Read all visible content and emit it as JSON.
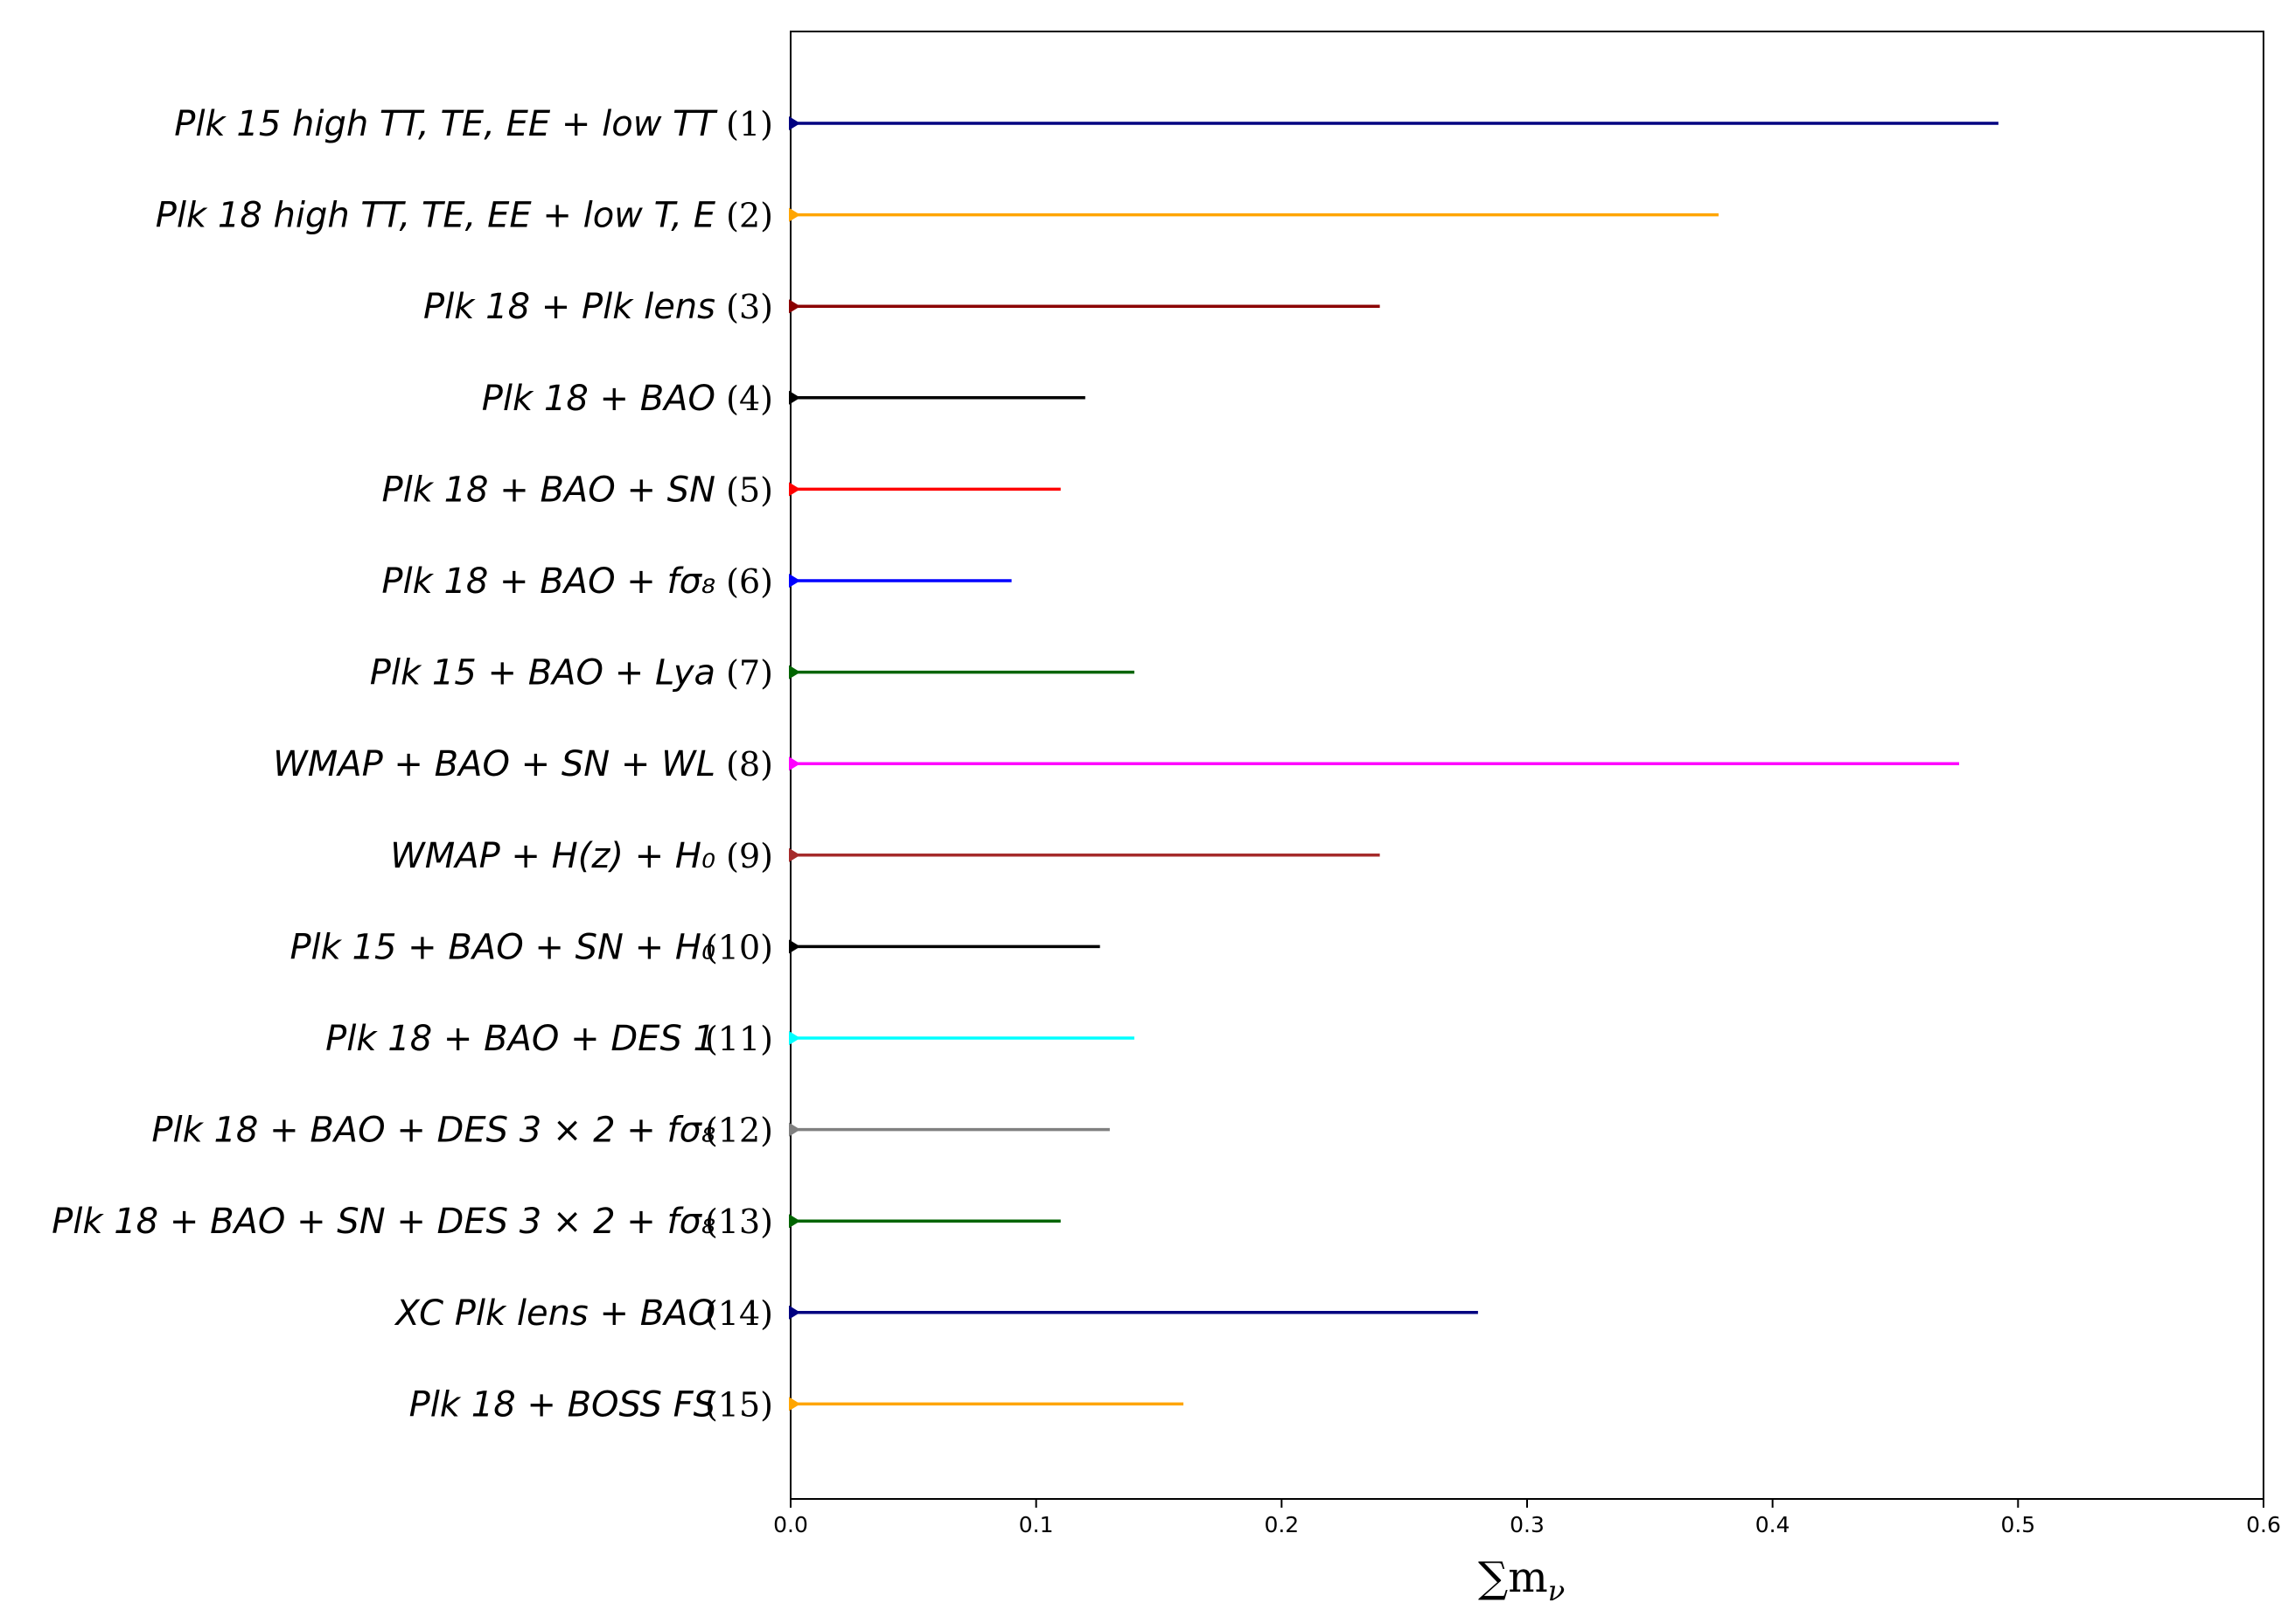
{
  "chart_data": {
    "type": "horizontal-bar",
    "title": "",
    "xlabel": "∑m",
    "xlabel_subscript": "ν",
    "ylabel": "",
    "xlim": [
      0.0,
      0.6
    ],
    "xticks": [
      "0.0",
      "0.1",
      "0.2",
      "0.3",
      "0.4",
      "0.5",
      "0.6"
    ],
    "grid": false,
    "legend": "none",
    "rows": [
      {
        "label": "Plk 15 high TT, TE, EE + low TT",
        "num": "(1)",
        "value": 0.492,
        "color": "#000080"
      },
      {
        "label": "Plk 18 high TT, TE, EE + low T, E",
        "num": "(2)",
        "value": 0.378,
        "color": "#ffa500"
      },
      {
        "label": "Plk 18  + Plk lens",
        "num": "(3)",
        "value": 0.24,
        "color": "#8b0000"
      },
      {
        "label": "Plk 18  + BAO",
        "num": "(4)",
        "value": 0.12,
        "color": "#000000"
      },
      {
        "label": "Plk 18 + BAO + SN",
        "num": "(5)",
        "value": 0.11,
        "color": "#ff0000"
      },
      {
        "label": "Plk 18 + BAO + fσ₈",
        "num": "(6)",
        "value": 0.09,
        "color": "#0000ff"
      },
      {
        "label": "Plk 15 + BAO + Lya",
        "num": "(7)",
        "value": 0.14,
        "color": "#006400"
      },
      {
        "label": "WMAP + BAO + SN + WL",
        "num": "(8)",
        "value": 0.476,
        "color": "#ff00ff"
      },
      {
        "label": "WMAP + H(z) + H₀",
        "num": "(9)",
        "value": 0.24,
        "color": "#a52a2a"
      },
      {
        "label": "Plk 15 + BAO + SN + H₀",
        "num": "(10)",
        "value": 0.126,
        "color": "#000000"
      },
      {
        "label": "Plk 18 + BAO + DES 1",
        "num": "(11)",
        "value": 0.14,
        "color": "#00ffff"
      },
      {
        "label": "Plk 18 + BAO + DES  3 × 2 + fσ₈",
        "num": "(12)",
        "value": 0.13,
        "color": "#808080"
      },
      {
        "label": "Plk 18 + BAO + SN + DES  3 × 2 + fσ₈",
        "num": "(13)",
        "value": 0.11,
        "color": "#006400"
      },
      {
        "label": "XC Plk lens + BAO",
        "num": "(14)",
        "value": 0.28,
        "color": "#000080"
      },
      {
        "label": "Plk 18 + BOSS FS",
        "num": "(15)",
        "value": 0.16,
        "color": "#ffa500"
      }
    ]
  }
}
